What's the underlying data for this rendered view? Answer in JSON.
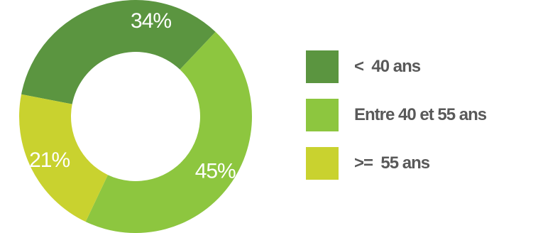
{
  "chart_data": {
    "type": "pie",
    "donut": true,
    "categories": [
      "< 40 ans",
      "Entre 40 et 55 ans",
      ">= 55 ans"
    ],
    "values": [
      34,
      45,
      21
    ],
    "data_labels": [
      "34%",
      "45%",
      "21%"
    ],
    "colors": [
      "#5b9540",
      "#8dc63f",
      "#c9d22f"
    ],
    "legend_position": "right",
    "title": ""
  },
  "legend": {
    "items": [
      {
        "label": "<  40 ans",
        "color": "#5b9540"
      },
      {
        "label": "Entre 40 et 55 ans",
        "color": "#8dc63f"
      },
      {
        "label": ">=  55 ans",
        "color": "#c9d22f"
      }
    ]
  }
}
